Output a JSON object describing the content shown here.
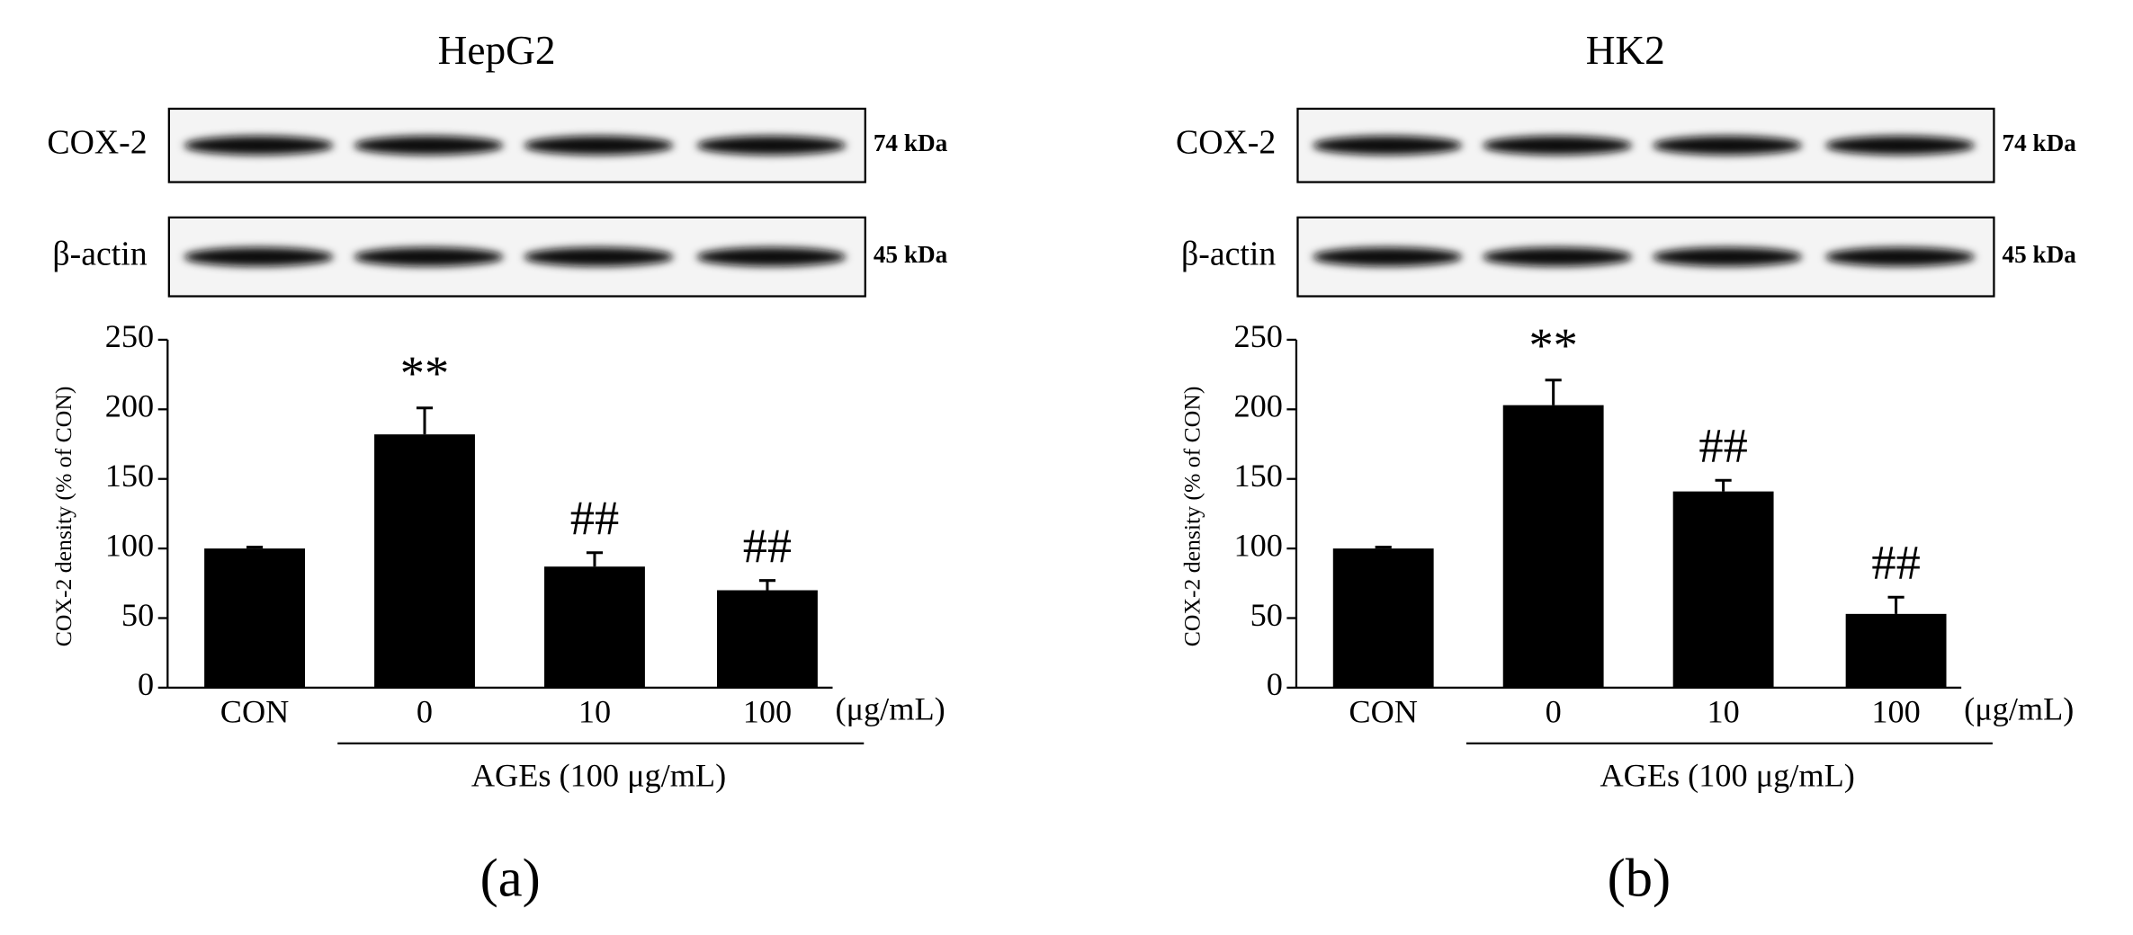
{
  "chart_data": [
    {
      "type": "bar",
      "title": "HepG2",
      "panel_label": "(a)",
      "blots": [
        {
          "label": "COX-2",
          "size": "74 kDa"
        },
        {
          "label": "β-actin",
          "size": "45 kDa"
        }
      ],
      "ylabel": "COX-2 density (% of CON)",
      "categories": [
        "CON",
        "0",
        "10",
        "100"
      ],
      "unit_label": "(μg/mL)",
      "group_label": "AGEs (100 μg/mL)",
      "values": [
        100,
        182,
        87,
        70
      ],
      "errors": [
        1,
        19,
        10,
        7
      ],
      "annotations": [
        null,
        "**",
        "##",
        "##"
      ],
      "ylim": [
        0,
        250
      ],
      "yticks": [
        0,
        50,
        100,
        150,
        200,
        250
      ],
      "color": "#000000"
    },
    {
      "type": "bar",
      "title": "HK2",
      "panel_label": "(b)",
      "blots": [
        {
          "label": "COX-2",
          "size": "74 kDa"
        },
        {
          "label": "β-actin",
          "size": "45 kDa"
        }
      ],
      "ylabel": "COX-2 density (% of CON)",
      "categories": [
        "CON",
        "0",
        "10",
        "100"
      ],
      "unit_label": "(μg/mL)",
      "group_label": "AGEs (100 μg/mL)",
      "values": [
        100,
        203,
        141,
        53
      ],
      "errors": [
        1,
        18,
        8,
        12
      ],
      "annotations": [
        null,
        "**",
        "##",
        "##"
      ],
      "ylim": [
        0,
        250
      ],
      "yticks": [
        0,
        50,
        100,
        150,
        200,
        250
      ],
      "color": "#000000"
    }
  ]
}
